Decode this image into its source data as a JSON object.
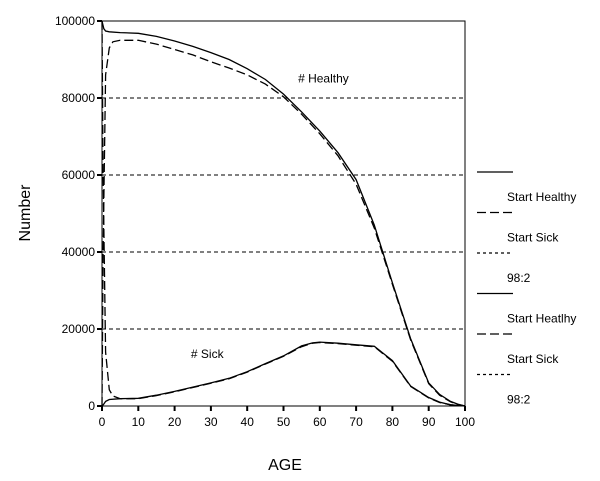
{
  "chart_data": {
    "type": "line",
    "xlabel": "AGE",
    "ylabel": "Number",
    "xlim": [
      0,
      100
    ],
    "ylim": [
      0,
      100000
    ],
    "x_ticks": [
      0,
      10,
      20,
      30,
      40,
      50,
      60,
      70,
      80,
      90,
      100
    ],
    "y_ticks": [
      0,
      20000,
      40000,
      60000,
      80000,
      100000
    ],
    "x_tick_labels": [
      "0",
      "10",
      "20",
      "30",
      "40",
      "50",
      "60",
      "70",
      "80",
      "90",
      "100"
    ],
    "y_tick_labels": [
      "0",
      "20000",
      "40000",
      "60000",
      "80000",
      "100000"
    ],
    "gridlines_y": [
      20000,
      40000,
      60000,
      80000
    ],
    "annotations": [
      {
        "text": "# Healthy",
        "x": 61,
        "y": 84000
      },
      {
        "text": "# Sick",
        "x": 29,
        "y": 12500
      }
    ],
    "legend": [
      {
        "label": "Start Healthy",
        "style": "solid"
      },
      {
        "label": "Start Sick",
        "style": "long-dash"
      },
      {
        "label": "98:2",
        "style": "short-dash"
      },
      {
        "label": "Start Heatlhy",
        "style": "solid"
      },
      {
        "label": "Start Sick",
        "style": "long-dash"
      },
      {
        "label": "98:2",
        "style": "short-dash"
      }
    ],
    "series": [
      {
        "style": "solid",
        "x": [
          0,
          0.5,
          1,
          2,
          5,
          10,
          15,
          20,
          25,
          30,
          35,
          40,
          45,
          50,
          55,
          60,
          65,
          70,
          75,
          80,
          85,
          90,
          93,
          96,
          98,
          100
        ],
        "y": [
          100000,
          98000,
          97400,
          97200,
          97000,
          96800,
          96000,
          94800,
          93400,
          91800,
          90000,
          87600,
          84800,
          81000,
          76400,
          71400,
          65800,
          58800,
          47000,
          32000,
          17500,
          6000,
          3000,
          1200,
          500,
          0
        ]
      },
      {
        "style": "long-dash",
        "x": [
          0,
          0.3,
          1,
          2,
          3,
          5,
          10,
          15,
          20,
          25,
          30,
          35,
          40,
          45,
          50,
          55,
          60,
          65,
          70,
          75,
          80,
          85,
          90,
          93,
          96,
          98,
          100
        ],
        "y": [
          0,
          40000,
          86000,
          93000,
          94600,
          95000,
          95000,
          94000,
          92600,
          91200,
          89400,
          87800,
          86000,
          83600,
          80300,
          75800,
          70700,
          65000,
          57600,
          46200,
          31600,
          17200,
          5800,
          2800,
          1100,
          400,
          0
        ]
      },
      {
        "style": "solid",
        "x": [
          0,
          0.5,
          1,
          2,
          5,
          10,
          15,
          20,
          25,
          30,
          35,
          40,
          45,
          50,
          55,
          58,
          60,
          65,
          70,
          75,
          80,
          85,
          90,
          93,
          96,
          100
        ],
        "y": [
          0,
          500,
          1200,
          1700,
          1900,
          2000,
          2800,
          3800,
          4900,
          6000,
          7200,
          8900,
          11000,
          13000,
          15600,
          16400,
          16600,
          16300,
          15900,
          15500,
          11800,
          5200,
          2200,
          1000,
          300,
          0
        ]
      },
      {
        "style": "long-dash",
        "x": [
          0,
          0.3,
          1,
          2,
          3,
          5,
          10,
          15,
          20,
          25,
          30,
          35,
          40,
          45,
          50,
          55,
          58,
          60,
          65,
          70,
          75,
          80,
          85,
          90,
          93,
          96,
          100
        ],
        "y": [
          100000,
          60000,
          14000,
          4200,
          2600,
          1900,
          1900,
          2700,
          3700,
          4800,
          5900,
          7100,
          8800,
          10900,
          12900,
          15400,
          16300,
          16500,
          16200,
          15800,
          15400,
          11600,
          5100,
          2100,
          900,
          300,
          0
        ]
      }
    ]
  }
}
